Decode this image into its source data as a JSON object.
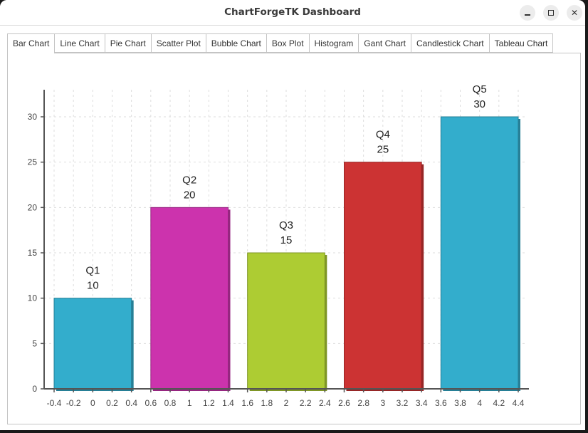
{
  "window": {
    "title": "ChartForgeTK Dashboard",
    "controls": [
      {
        "name": "minimize",
        "icon": "minimize-icon"
      },
      {
        "name": "maximize",
        "icon": "maximize-icon"
      },
      {
        "name": "close",
        "icon": "close-icon"
      }
    ]
  },
  "tabs": [
    {
      "label": "Bar Chart",
      "active": true
    },
    {
      "label": "Line Chart",
      "active": false
    },
    {
      "label": "Pie Chart",
      "active": false
    },
    {
      "label": "Scatter Plot",
      "active": false
    },
    {
      "label": "Bubble Chart",
      "active": false
    },
    {
      "label": "Box Plot",
      "active": false
    },
    {
      "label": "Histogram",
      "active": false
    },
    {
      "label": "Gant Chart",
      "active": false
    },
    {
      "label": "Candlestick Chart",
      "active": false
    },
    {
      "label": "Tableau Chart",
      "active": false
    }
  ],
  "chart_data": {
    "type": "bar",
    "title": "",
    "xlabel": "",
    "ylabel": "",
    "categories": [
      "Q1",
      "Q2",
      "Q3",
      "Q4",
      "Q5"
    ],
    "values": [
      10,
      20,
      15,
      25,
      30
    ],
    "bar_positions": [
      0,
      1,
      2,
      3,
      4
    ],
    "bar_width": 0.8,
    "colors": [
      "#33adcc",
      "#cc33ad",
      "#adcc33",
      "#cc3333",
      "#33adcc"
    ],
    "shadow_colors": [
      "#267f96",
      "#962680",
      "#7f9626",
      "#962626",
      "#267f96"
    ],
    "data_labels": [
      {
        "category": "Q1",
        "value": "10"
      },
      {
        "category": "Q2",
        "value": "20"
      },
      {
        "category": "Q3",
        "value": "15"
      },
      {
        "category": "Q4",
        "value": "25"
      },
      {
        "category": "Q5",
        "value": "30"
      }
    ],
    "xlim": [
      -0.4,
      4.4
    ],
    "ylim": [
      0,
      33
    ],
    "x_ticks": [
      "-0.4",
      "-0.2",
      "0",
      "0.2",
      "0.4",
      "0.6",
      "0.8",
      "1",
      "1.2",
      "1.4",
      "1.6",
      "1.8",
      "2",
      "2.2",
      "2.4",
      "2.6",
      "2.8",
      "3",
      "3.2",
      "3.4",
      "3.6",
      "3.8",
      "4",
      "4.2",
      "4.4"
    ],
    "y_ticks": [
      "0",
      "5",
      "10",
      "15",
      "20",
      "25",
      "30"
    ],
    "grid": true,
    "legend": null
  }
}
